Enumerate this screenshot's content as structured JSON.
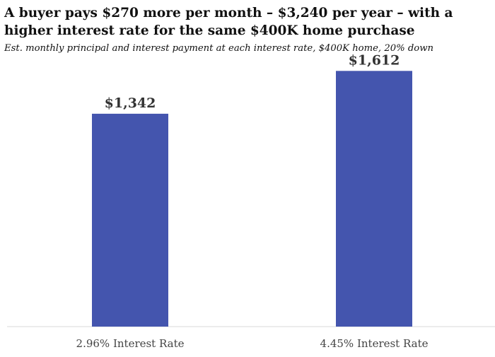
{
  "title": "A buyer pays $270 more per month – $3,240 per year – with a higher interest rate for the same $400K home purchase",
  "subtitle": "Est. monthly principal and interest payment at each interest rate, $400K home, 20% down",
  "colors": {
    "bar": "#4455ae",
    "axis": "#d9d9d9"
  },
  "chart_data": {
    "type": "bar",
    "categories": [
      "2.96% Interest Rate",
      "4.45% Interest Rate"
    ],
    "values": [
      1342,
      1612
    ],
    "data_labels": [
      "$1,342",
      "$1,612"
    ],
    "title": "A buyer pays $270 more per month – $3,240 per year – with a higher interest rate for the same $400K home purchase",
    "subtitle": "Est. monthly principal and interest payment at each interest rate, $400K home, 20% down",
    "xlabel": "",
    "ylabel": "",
    "ylim": [
      0,
      1600
    ],
    "grid": false,
    "legend": "none"
  }
}
